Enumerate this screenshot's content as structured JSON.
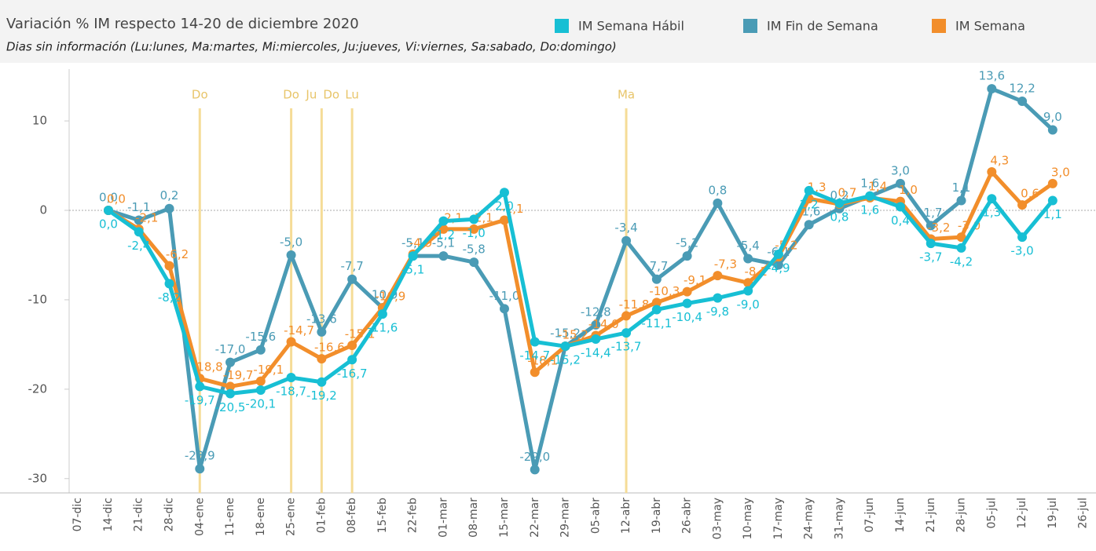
{
  "chart_data": {
    "type": "line",
    "title": "Variación % IM respecto 14-20 de diciembre 2020",
    "subtitle": "Dias sin información (Lu:lunes, Ma:martes, Mi:miercoles, Ju:jueves, Vi:viernes, Sa:sabado, Do:domingo)",
    "categories": [
      "07-dic",
      "14-dic",
      "21-dic",
      "28-dic",
      "04-ene",
      "11-ene",
      "18-ene",
      "25-ene",
      "01-feb",
      "08-feb",
      "15-feb",
      "22-feb",
      "01-mar",
      "08-mar",
      "15-mar",
      "22-mar",
      "29-mar",
      "05-abr",
      "12-abr",
      "19-abr",
      "26-abr",
      "03-may",
      "10-may",
      "17-may",
      "24-may",
      "31-may",
      "07-jun",
      "14-jun",
      "21-jun",
      "28-jun",
      "05-jul",
      "12-jul",
      "19-jul",
      "26-jul"
    ],
    "series": [
      {
        "name": "IM Semana Hábil",
        "color": "#17bfd4",
        "values": [
          null,
          0.0,
          -2.4,
          -8.2,
          -19.7,
          -20.5,
          -20.1,
          -18.7,
          -19.2,
          -16.7,
          -11.6,
          -5.1,
          -1.2,
          -1.0,
          2.0,
          -14.7,
          -15.2,
          -14.4,
          -13.7,
          -11.1,
          -10.4,
          -9.8,
          -9.0,
          -4.9,
          2.2,
          0.8,
          1.6,
          0.4,
          -3.7,
          -4.2,
          1.3,
          -3.0,
          1.1,
          null
        ],
        "value_labels": [
          null,
          "0,0",
          "-2,4",
          "-8,2",
          "-19,7",
          "-20,5",
          "-20,1",
          "-18,7",
          "-19,2",
          "-16,7",
          "-11,6",
          "-5,1",
          "-1,2",
          "-1,0",
          "2,0",
          "-14,7",
          "-15,2",
          "-14,4",
          "-13,7",
          "-11,1",
          "-10,4",
          "-9,8",
          "-9,0",
          "-4,9",
          "2,2",
          "0,8",
          "1,6",
          "0,4",
          "-3,7",
          "-4,2",
          "1,3",
          "-3,0",
          "1,1",
          null
        ]
      },
      {
        "name": "IM Fin de Semana",
        "color": "#4a9bb5",
        "values": [
          null,
          0.0,
          -1.1,
          0.2,
          -28.9,
          -17.0,
          -15.6,
          -5.0,
          -13.6,
          -7.7,
          -10.9,
          -5.1,
          -5.1,
          -5.8,
          -11.0,
          -29.0,
          -15.2,
          -12.8,
          -3.4,
          -7.7,
          -5.1,
          0.8,
          -5.4,
          -6.1,
          -1.6,
          0.2,
          1.6,
          3.0,
          -1.7,
          1.1,
          13.6,
          12.2,
          9.0,
          null
        ],
        "value_labels": [
          null,
          "0,0",
          "-1,1",
          "0,2",
          "-28,9",
          "-17,0",
          "-15,6",
          "-5,0",
          "-13,6",
          "-7,7",
          "-10,9",
          "-5,1",
          "-5,1",
          "-5,8",
          "-11,0",
          "-29,0",
          "-15,2",
          "-12,8",
          "-3,4",
          "-7,7",
          "-5,1",
          "0,8",
          "-5,4",
          "-6,1",
          "-1,6",
          "0,2",
          "1,6",
          "3,0",
          "-1,7",
          "1,1",
          "13,6",
          "12,2",
          "9,0",
          null
        ]
      },
      {
        "name": "IM Semana",
        "color": "#f28e2b",
        "values": [
          null,
          0.0,
          -2.1,
          -6.2,
          -18.8,
          -19.7,
          -19.1,
          -14.7,
          -16.6,
          -15.1,
          -10.9,
          -4.9,
          -2.1,
          -2.1,
          -1.1,
          -18.1,
          -15.2,
          -14.0,
          -11.8,
          -10.3,
          -9.1,
          -7.3,
          -8.1,
          -5.2,
          1.3,
          0.7,
          1.4,
          1.0,
          -3.2,
          -3.0,
          4.3,
          0.6,
          3.0,
          null
        ],
        "value_labels": [
          null,
          "0,0",
          "-2,1",
          "-6,2",
          "-18,8",
          "-19,7",
          "-19,1",
          "-14,7",
          "-16,6",
          "-15,1",
          "-10,9",
          "-4,9",
          "-2,1",
          "-2,1",
          "-1,1",
          "-18,1",
          "-15,2",
          "-14,0",
          "-11,8",
          "-10,3",
          "-9,1",
          "-7,3",
          "-8,1",
          "-5,2",
          "1,3",
          "0,7",
          "1,4",
          "1,0",
          "-3,2",
          "-3,0",
          "4,3",
          "0,6",
          "3,0",
          null
        ]
      }
    ],
    "annotations": [
      {
        "x": "04-ene",
        "label": "Do"
      },
      {
        "x": "25-ene",
        "label": "Do"
      },
      {
        "x": "01-feb",
        "label": "Ju"
      },
      {
        "x": "01-feb",
        "label": "Do"
      },
      {
        "x": "08-feb",
        "label": "Lu"
      },
      {
        "x": "12-abr",
        "label": "Ma"
      }
    ],
    "annotation_color": "#f5dc97",
    "ylim": [
      -31.6,
      15.8
    ],
    "yticks": [
      -30,
      -20,
      -10,
      0,
      10
    ],
    "zero_line": true,
    "legend": "top"
  }
}
